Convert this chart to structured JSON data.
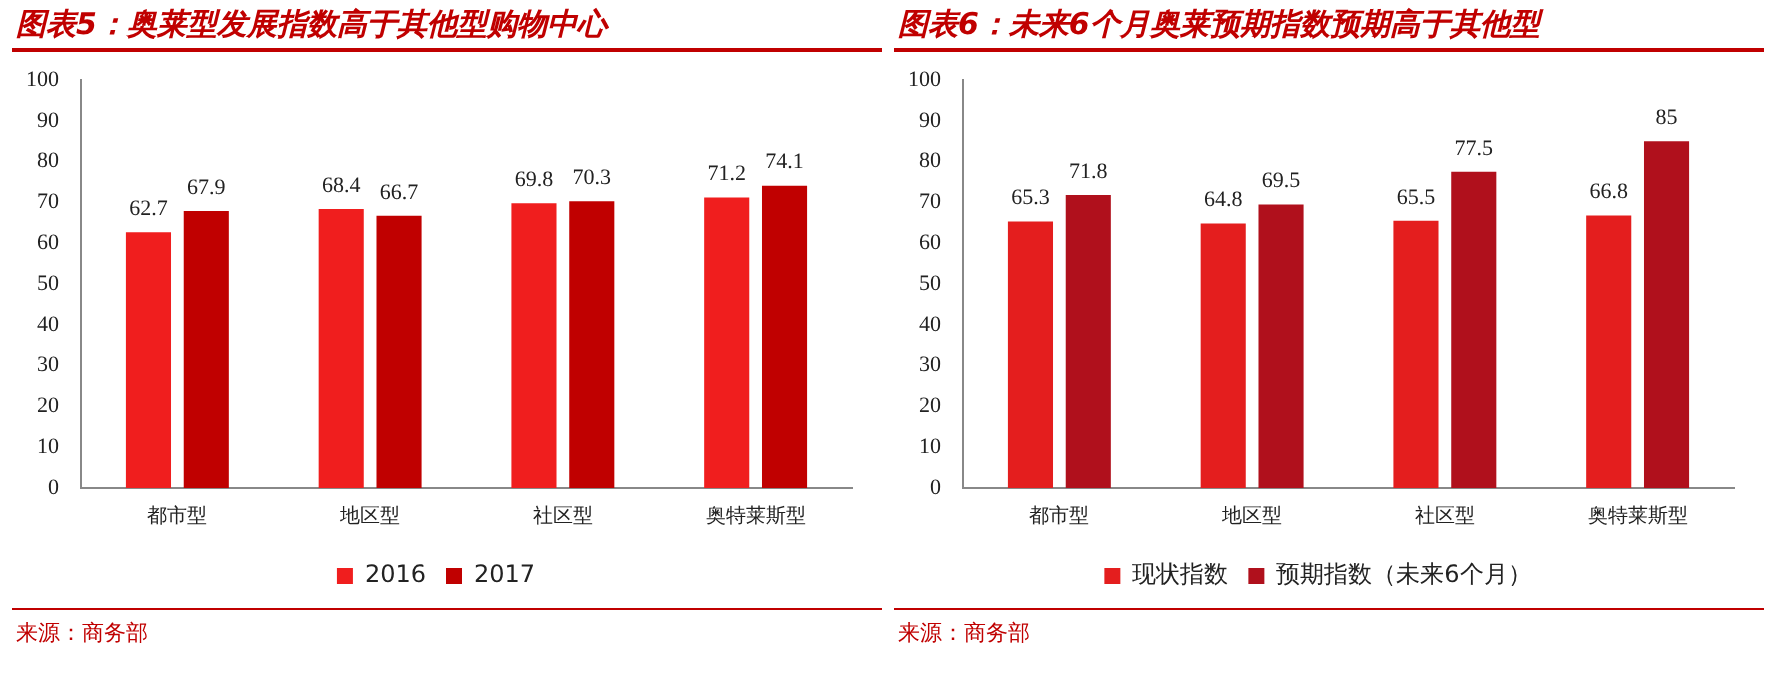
{
  "chart_data": [
    {
      "type": "bar",
      "title": "图表5：奥莱型发展指数高于其他型购物中心",
      "categories": [
        "都市型",
        "地区型",
        "社区型",
        "奥特莱斯型"
      ],
      "series": [
        {
          "name": "2016",
          "color": "#f01e1e",
          "values": [
            62.7,
            68.4,
            69.8,
            71.2
          ]
        },
        {
          "name": "2017",
          "color": "#c00000",
          "values": [
            67.9,
            66.7,
            70.3,
            74.1
          ]
        }
      ],
      "ylim": [
        0,
        100
      ],
      "yticks": [
        0,
        10,
        20,
        30,
        40,
        50,
        60,
        70,
        80,
        90,
        100
      ],
      "grid": false,
      "legend": "bottom",
      "data_labels": true,
      "annotations": [
        "来源：商务部"
      ]
    },
    {
      "type": "bar",
      "title": "图表6：未来6个月奥莱预期指数预期高于其他型",
      "categories": [
        "都市型",
        "地区型",
        "社区型",
        "奥特莱斯型"
      ],
      "series": [
        {
          "name": "现状指数",
          "color": "#e41e1e",
          "values": [
            65.3,
            64.8,
            65.5,
            66.8
          ]
        },
        {
          "name": "预期指数（未来6个月）",
          "color": "#b0101c",
          "values": [
            71.8,
            69.5,
            77.5,
            85
          ]
        }
      ],
      "ylim": [
        0,
        100
      ],
      "yticks": [
        0,
        10,
        20,
        30,
        40,
        50,
        60,
        70,
        80,
        90,
        100
      ],
      "grid": false,
      "legend": "bottom",
      "data_labels": true,
      "annotations": [
        "来源：商务部"
      ]
    }
  ]
}
